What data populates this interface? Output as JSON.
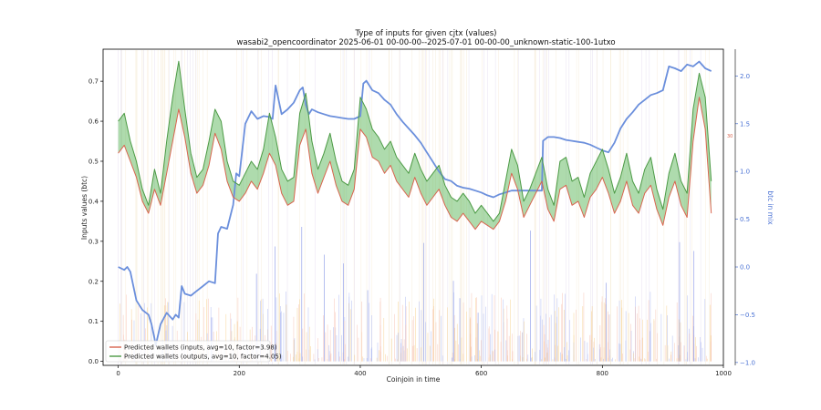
{
  "chart_data": {
    "type": "line",
    "title": "Type of inputs for given cjtx (values)",
    "subtitle": "wasabi2_opencoordinator 2025-06-01 00-00-00--2025-07-01 00-00-00_unknown-static-100-1utxo",
    "xlabel": "Coinjoin in time",
    "ylabel": "Inputs values (btc)",
    "y2label": "btc in mix",
    "xlim": [
      -25,
      1000
    ],
    "ylim": [
      -0.01,
      0.78
    ],
    "y2lim": [
      -1.03,
      2.28
    ],
    "grid": false,
    "legend_position": "lower-left",
    "x_ticks": [
      "0",
      "200",
      "400",
      "600",
      "800",
      "1000"
    ],
    "y_ticks": [
      "0.0",
      "0.1",
      "0.2",
      "0.3",
      "0.4",
      "0.5",
      "0.6",
      "0.7"
    ],
    "y2_ticks": [
      "−1.0",
      "−0.5",
      "0.0",
      "0.5",
      "1.0",
      "1.5",
      "2.0"
    ],
    "y2_marker_label": "30",
    "series": [
      {
        "name": "Predicted wallets (inputs, avg=10, factor=3.98)",
        "color": "#d9654f",
        "axis": "left",
        "x": [
          0,
          10,
          20,
          30,
          40,
          50,
          60,
          70,
          80,
          90,
          100,
          110,
          120,
          130,
          140,
          150,
          160,
          170,
          180,
          190,
          200,
          210,
          220,
          230,
          240,
          250,
          260,
          270,
          280,
          290,
          300,
          310,
          320,
          330,
          340,
          350,
          360,
          370,
          380,
          390,
          400,
          410,
          420,
          430,
          440,
          450,
          460,
          470,
          480,
          490,
          500,
          510,
          520,
          530,
          540,
          550,
          560,
          570,
          580,
          590,
          600,
          610,
          620,
          630,
          640,
          650,
          660,
          670,
          680,
          690,
          700,
          710,
          720,
          730,
          740,
          750,
          760,
          770,
          780,
          790,
          800,
          810,
          820,
          830,
          840,
          850,
          860,
          870,
          880,
          890,
          900,
          910,
          920,
          930,
          940,
          950,
          960,
          970,
          980
        ],
        "y": [
          0.52,
          0.54,
          0.5,
          0.46,
          0.4,
          0.37,
          0.43,
          0.39,
          0.47,
          0.55,
          0.63,
          0.56,
          0.47,
          0.42,
          0.44,
          0.49,
          0.57,
          0.53,
          0.45,
          0.41,
          0.4,
          0.42,
          0.45,
          0.43,
          0.47,
          0.52,
          0.49,
          0.42,
          0.39,
          0.4,
          0.54,
          0.58,
          0.47,
          0.42,
          0.46,
          0.5,
          0.44,
          0.4,
          0.39,
          0.43,
          0.58,
          0.56,
          0.51,
          0.5,
          0.47,
          0.49,
          0.45,
          0.43,
          0.41,
          0.46,
          0.42,
          0.39,
          0.41,
          0.43,
          0.39,
          0.36,
          0.35,
          0.37,
          0.35,
          0.33,
          0.35,
          0.34,
          0.33,
          0.35,
          0.4,
          0.47,
          0.43,
          0.36,
          0.39,
          0.42,
          0.45,
          0.38,
          0.35,
          0.43,
          0.44,
          0.39,
          0.4,
          0.36,
          0.41,
          0.43,
          0.46,
          0.42,
          0.37,
          0.4,
          0.45,
          0.39,
          0.37,
          0.42,
          0.44,
          0.38,
          0.34,
          0.41,
          0.45,
          0.39,
          0.36,
          0.55,
          0.66,
          0.58,
          0.37
        ]
      },
      {
        "name": "Predicted wallets (outputs, avg=10, factor=4.05)",
        "color": "#4c9a45",
        "axis": "left",
        "x": [
          0,
          10,
          20,
          30,
          40,
          50,
          60,
          70,
          80,
          90,
          100,
          110,
          120,
          130,
          140,
          150,
          160,
          170,
          180,
          190,
          200,
          210,
          220,
          230,
          240,
          250,
          260,
          270,
          280,
          290,
          300,
          310,
          320,
          330,
          340,
          350,
          360,
          370,
          380,
          390,
          400,
          410,
          420,
          430,
          440,
          450,
          460,
          470,
          480,
          490,
          500,
          510,
          520,
          530,
          540,
          550,
          560,
          570,
          580,
          590,
          600,
          610,
          620,
          630,
          640,
          650,
          660,
          670,
          680,
          690,
          700,
          710,
          720,
          730,
          740,
          750,
          760,
          770,
          780,
          790,
          800,
          810,
          820,
          830,
          840,
          850,
          860,
          870,
          880,
          890,
          900,
          910,
          920,
          930,
          940,
          950,
          960,
          970,
          980
        ],
        "y": [
          0.6,
          0.62,
          0.55,
          0.5,
          0.43,
          0.39,
          0.48,
          0.42,
          0.55,
          0.66,
          0.75,
          0.63,
          0.52,
          0.46,
          0.48,
          0.55,
          0.63,
          0.6,
          0.5,
          0.45,
          0.44,
          0.47,
          0.5,
          0.48,
          0.53,
          0.62,
          0.56,
          0.48,
          0.45,
          0.46,
          0.62,
          0.67,
          0.55,
          0.48,
          0.52,
          0.57,
          0.5,
          0.45,
          0.44,
          0.48,
          0.66,
          0.63,
          0.58,
          0.56,
          0.53,
          0.55,
          0.51,
          0.49,
          0.47,
          0.52,
          0.48,
          0.45,
          0.47,
          0.49,
          0.44,
          0.41,
          0.4,
          0.42,
          0.4,
          0.37,
          0.39,
          0.37,
          0.35,
          0.37,
          0.45,
          0.53,
          0.49,
          0.4,
          0.43,
          0.47,
          0.51,
          0.43,
          0.39,
          0.5,
          0.51,
          0.45,
          0.46,
          0.41,
          0.47,
          0.5,
          0.53,
          0.48,
          0.42,
          0.46,
          0.52,
          0.45,
          0.42,
          0.48,
          0.51,
          0.43,
          0.38,
          0.47,
          0.52,
          0.45,
          0.42,
          0.63,
          0.72,
          0.66,
          0.45
        ]
      },
      {
        "name": "",
        "color": "#6b8fdc",
        "axis": "right",
        "x": [
          0,
          10,
          15,
          20,
          30,
          40,
          50,
          55,
          60,
          62,
          70,
          80,
          90,
          95,
          100,
          105,
          110,
          120,
          130,
          140,
          150,
          160,
          165,
          170,
          180,
          190,
          195,
          200,
          210,
          220,
          230,
          240,
          250,
          255,
          260,
          270,
          280,
          290,
          300,
          305,
          310,
          315,
          320,
          330,
          340,
          350,
          360,
          370,
          380,
          390,
          400,
          405,
          410,
          420,
          430,
          440,
          450,
          460,
          470,
          480,
          490,
          500,
          510,
          520,
          530,
          540,
          550,
          560,
          570,
          580,
          590,
          600,
          610,
          620,
          630,
          640,
          650,
          660,
          670,
          680,
          690,
          700,
          702,
          710,
          720,
          730,
          740,
          750,
          760,
          770,
          780,
          790,
          800,
          810,
          820,
          830,
          840,
          850,
          860,
          870,
          880,
          890,
          900,
          910,
          920,
          930,
          940,
          950,
          960,
          970,
          980
        ],
        "y": [
          0.0,
          -0.03,
          0.0,
          -0.05,
          -0.35,
          -0.45,
          -0.5,
          -0.6,
          -0.75,
          -0.82,
          -0.6,
          -0.48,
          -0.55,
          -0.5,
          -0.53,
          -0.2,
          -0.28,
          -0.3,
          -0.25,
          -0.2,
          -0.15,
          -0.17,
          0.35,
          0.42,
          0.4,
          0.65,
          0.98,
          0.95,
          1.5,
          1.63,
          1.55,
          1.58,
          1.57,
          1.55,
          1.9,
          1.6,
          1.65,
          1.72,
          1.85,
          1.88,
          1.7,
          1.6,
          1.65,
          1.62,
          1.6,
          1.58,
          1.57,
          1.56,
          1.55,
          1.55,
          1.58,
          1.92,
          1.95,
          1.85,
          1.82,
          1.75,
          1.7,
          1.6,
          1.52,
          1.45,
          1.38,
          1.3,
          1.2,
          1.1,
          1.0,
          0.92,
          0.9,
          0.85,
          0.83,
          0.82,
          0.8,
          0.78,
          0.75,
          0.73,
          0.76,
          0.78,
          0.8,
          0.8,
          0.8,
          0.8,
          0.8,
          0.8,
          1.32,
          1.36,
          1.36,
          1.35,
          1.33,
          1.32,
          1.31,
          1.3,
          1.28,
          1.25,
          1.22,
          1.2,
          1.3,
          1.45,
          1.55,
          1.62,
          1.7,
          1.75,
          1.8,
          1.82,
          1.85,
          2.1,
          2.08,
          2.05,
          2.12,
          2.1,
          2.15,
          2.08,
          2.05
        ]
      }
    ]
  }
}
